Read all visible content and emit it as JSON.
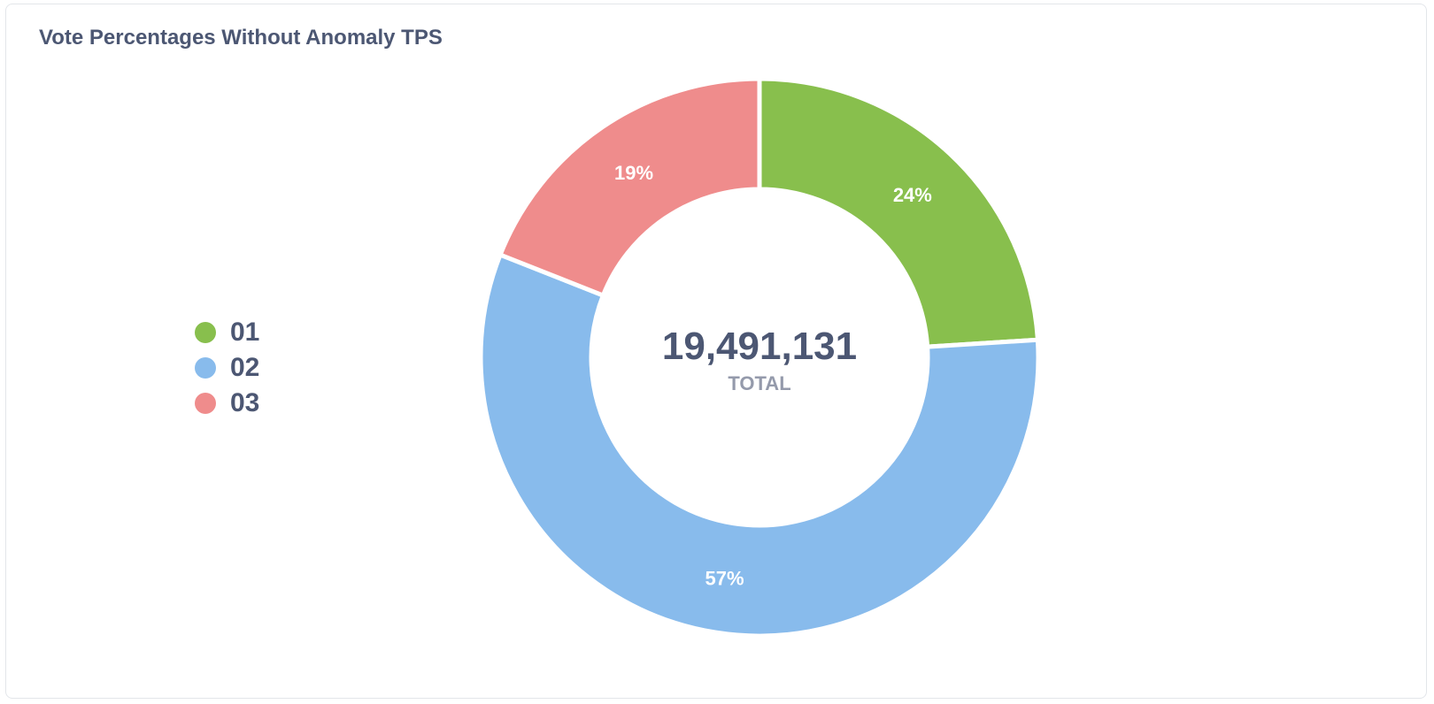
{
  "card": {
    "title": "Vote Percentages Without Anomaly TPS"
  },
  "chart_data": {
    "type": "pie",
    "variant": "donut",
    "title": "Vote Percentages Without Anomaly TPS",
    "total_value": "19,491,131",
    "total_label": "TOTAL",
    "legend_position": "left",
    "slices": [
      {
        "label": "01",
        "percent": 24,
        "display": "24%",
        "color": "#88bf4d"
      },
      {
        "label": "02",
        "percent": 57,
        "display": "57%",
        "color": "#88bbec"
      },
      {
        "label": "03",
        "percent": 19,
        "display": "19%",
        "color": "#ef8c8c"
      }
    ]
  }
}
